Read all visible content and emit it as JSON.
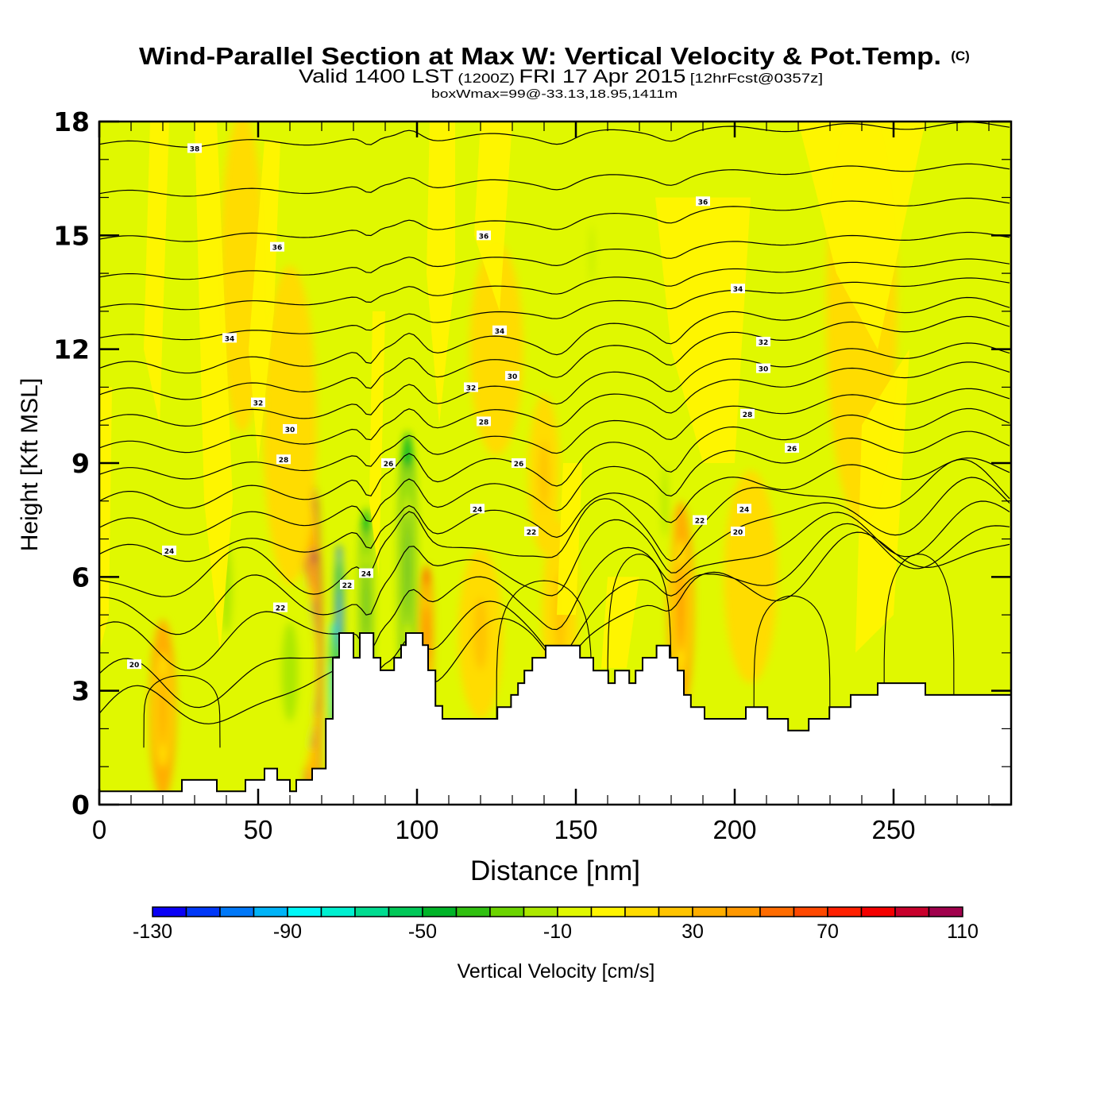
{
  "chart_data": {
    "type": "heatmap",
    "title": "Wind-Parallel Section at Max W: Vertical Velocity & Pot.Temp.",
    "title_badge": "(C)",
    "subtitle_parts": {
      "a": "Valid 1400 LST",
      "b": "(1200Z)",
      "c": "FRI 17 Apr 2015",
      "d": "[12hrFcst@0357z]"
    },
    "subtitle2": "boxWmax=99@-33.13,18.95,1411m",
    "xlabel": "Distance [nm]",
    "ylabel": "Height [Kft MSL]",
    "xlim": [
      0,
      287
    ],
    "ylim": [
      0,
      18
    ],
    "x_ticks": [
      0,
      50,
      100,
      150,
      200,
      250
    ],
    "x_tick_labels": [
      "0",
      "50",
      "100",
      "150",
      "200",
      "250"
    ],
    "x_minor_step": 10,
    "y_ticks": [
      0,
      3,
      6,
      9,
      12,
      15,
      18
    ],
    "y_tick_labels": [
      "0",
      "3",
      "6",
      "9",
      "12",
      "15",
      "18"
    ],
    "y_minor_step": 1,
    "colorbar": {
      "label": "Vertical Velocity [cm/s]",
      "levels": [
        -130,
        -120,
        -110,
        -100,
        -90,
        -80,
        -70,
        -60,
        -50,
        -40,
        -30,
        -20,
        -10,
        0,
        10,
        20,
        30,
        40,
        50,
        60,
        70,
        80,
        90,
        100,
        110
      ],
      "tick_values": [
        -130,
        -90,
        -50,
        -10,
        30,
        70,
        110
      ],
      "tick_labels": [
        "-130",
        "-90",
        "-50",
        "-10",
        "30",
        "70",
        "110"
      ],
      "colors": [
        "#0a00f5",
        "#0038f8",
        "#0078f8",
        "#00b4f8",
        "#00f8f8",
        "#00f0d0",
        "#00dc90",
        "#00c858",
        "#00b428",
        "#30c010",
        "#6cd400",
        "#ace800",
        "#e0f800",
        "#fff400",
        "#ffdc00",
        "#ffc400",
        "#ffae00",
        "#ff9800",
        "#ff6c00",
        "#ff4800",
        "#ff2000",
        "#f40000",
        "#c8002c",
        "#a0004c"
      ]
    },
    "background_level_color": "#e0f800",
    "terrain_kft": [
      [
        0,
        0.35
      ],
      [
        26,
        0.35
      ],
      [
        26,
        0.65
      ],
      [
        37,
        0.65
      ],
      [
        37,
        0.35
      ],
      [
        46,
        0.35
      ],
      [
        46,
        0.65
      ],
      [
        52,
        0.65
      ],
      [
        52,
        0.95
      ],
      [
        56,
        0.95
      ],
      [
        56,
        0.65
      ],
      [
        60,
        0.65
      ],
      [
        60,
        0.35
      ],
      [
        62,
        0.35
      ],
      [
        62,
        0.65
      ],
      [
        67,
        0.65
      ],
      [
        67,
        0.95
      ],
      [
        71.3,
        0.95
      ],
      [
        71.3,
        2.26
      ],
      [
        73.5,
        2.26
      ],
      [
        73.5,
        3.87
      ],
      [
        75.5,
        3.87
      ],
      [
        75.5,
        4.52
      ],
      [
        80,
        4.52
      ],
      [
        80,
        3.87
      ],
      [
        82,
        3.87
      ],
      [
        82,
        4.52
      ],
      [
        86.3,
        4.52
      ],
      [
        86.3,
        3.87
      ],
      [
        88.5,
        3.87
      ],
      [
        88.5,
        3.54
      ],
      [
        92.8,
        3.54
      ],
      [
        92.8,
        3.87
      ],
      [
        95,
        3.87
      ],
      [
        95,
        4.2
      ],
      [
        96.5,
        4.2
      ],
      [
        96.5,
        4.52
      ],
      [
        101.8,
        4.52
      ],
      [
        101.8,
        4.2
      ],
      [
        103.5,
        4.2
      ],
      [
        103.5,
        3.54
      ],
      [
        105.8,
        3.54
      ],
      [
        105.8,
        2.6
      ],
      [
        108,
        2.6
      ],
      [
        108,
        2.26
      ],
      [
        125.3,
        2.26
      ],
      [
        125.3,
        2.57
      ],
      [
        129.6,
        2.57
      ],
      [
        129.6,
        2.89
      ],
      [
        131.8,
        2.89
      ],
      [
        131.8,
        3.2
      ],
      [
        133.8,
        3.2
      ],
      [
        133.8,
        3.53
      ],
      [
        136.3,
        3.53
      ],
      [
        136.3,
        3.87
      ],
      [
        140.5,
        3.87
      ],
      [
        140.5,
        4.19
      ],
      [
        151.3,
        4.19
      ],
      [
        151.3,
        3.87
      ],
      [
        155.5,
        3.87
      ],
      [
        155.5,
        3.53
      ],
      [
        160.2,
        3.53
      ],
      [
        160.2,
        3.2
      ],
      [
        162.3,
        3.2
      ],
      [
        162.3,
        3.53
      ],
      [
        166.8,
        3.53
      ],
      [
        166.8,
        3.2
      ],
      [
        168.8,
        3.2
      ],
      [
        168.8,
        3.53
      ],
      [
        171,
        3.53
      ],
      [
        171,
        3.87
      ],
      [
        175.4,
        3.87
      ],
      [
        175.4,
        4.19
      ],
      [
        179.5,
        4.19
      ],
      [
        179.5,
        3.87
      ],
      [
        182,
        3.87
      ],
      [
        182,
        3.53
      ],
      [
        184,
        3.53
      ],
      [
        184,
        2.89
      ],
      [
        186.2,
        2.89
      ],
      [
        186.2,
        2.57
      ],
      [
        190.5,
        2.57
      ],
      [
        190.5,
        2.26
      ],
      [
        203.5,
        2.26
      ],
      [
        203.5,
        2.57
      ],
      [
        210.3,
        2.57
      ],
      [
        210.3,
        2.26
      ],
      [
        216.8,
        2.26
      ],
      [
        216.8,
        1.95
      ],
      [
        223.3,
        1.95
      ],
      [
        223.3,
        2.26
      ],
      [
        229.8,
        2.26
      ],
      [
        229.8,
        2.57
      ],
      [
        236.5,
        2.57
      ],
      [
        236.5,
        2.89
      ],
      [
        245,
        2.89
      ],
      [
        245,
        3.2
      ],
      [
        260,
        3.2
      ],
      [
        260,
        2.89
      ],
      [
        287,
        2.89
      ]
    ],
    "w_features": [
      {
        "x": 67,
        "y": 3.6,
        "wx": 2.2,
        "wy": 3.6,
        "value": 100
      },
      {
        "x": 67.5,
        "y": 4.5,
        "wx": 1.5,
        "wy": 1.6,
        "value": 110
      },
      {
        "x": 75.5,
        "y": 4.9,
        "wx": 1.1,
        "wy": 1.4,
        "value": -110
      },
      {
        "x": 73.5,
        "y": 3.0,
        "wx": 0.9,
        "wy": 1.3,
        "value": -90
      },
      {
        "x": 84,
        "y": 5.3,
        "wx": 1.6,
        "wy": 1.8,
        "value": -50
      },
      {
        "x": 97,
        "y": 6.2,
        "wx": 2.0,
        "wy": 2.6,
        "value": -50
      },
      {
        "x": 103,
        "y": 4.5,
        "wx": 1.5,
        "wy": 1.3,
        "value": 50
      },
      {
        "x": 60,
        "y": 3.5,
        "wx": 6.0,
        "wy": 2.2,
        "value": -20
      },
      {
        "x": 40,
        "y": 5.7,
        "wx": 4.0,
        "wy": 2.0,
        "value": -20
      },
      {
        "x": 20,
        "y": 2.5,
        "wx": 3.0,
        "wy": 1.7,
        "value": 30
      },
      {
        "x": 120,
        "y": 4.5,
        "wx": 5.0,
        "wy": 1.6,
        "value": 25
      },
      {
        "x": 140,
        "y": 8.7,
        "wx": 3.5,
        "wy": 1.5,
        "value": 25
      },
      {
        "x": 145,
        "y": 5.0,
        "wx": 4.0,
        "wy": 1.8,
        "value": 20
      },
      {
        "x": 183,
        "y": 5.2,
        "wx": 3.0,
        "wy": 2.0,
        "value": 40
      },
      {
        "x": 178,
        "y": 8.0,
        "wx": 2.0,
        "wy": 1.6,
        "value": -20
      },
      {
        "x": 125,
        "y": 12.0,
        "wx": 6.0,
        "wy": 2.0,
        "value": 10
      },
      {
        "x": 240,
        "y": 13.0,
        "wx": 8.0,
        "wy": 4.0,
        "value": 10
      },
      {
        "x": 45,
        "y": 14.0,
        "wx": 5.0,
        "wy": 3.0,
        "value": 10
      },
      {
        "x": 60,
        "y": 10.0,
        "wx": 6.0,
        "wy": 3.0,
        "value": 10
      },
      {
        "x": 205,
        "y": 6.0,
        "wx": 6.0,
        "wy": 2.0,
        "value": 10
      },
      {
        "x": 155,
        "y": 14.5,
        "wx": 1.0,
        "wy": 1.3,
        "value": -20
      }
    ],
    "theta_contours": {
      "levels_K": [
        20,
        21,
        22,
        23,
        24,
        25,
        26,
        27,
        28,
        29,
        30,
        31,
        32,
        33,
        34,
        35,
        36,
        37,
        38
      ],
      "labels": [
        {
          "text": "38",
          "x": 30,
          "y": 17.3
        },
        {
          "text": "36",
          "x": 56,
          "y": 14.7
        },
        {
          "text": "36",
          "x": 121,
          "y": 15.0
        },
        {
          "text": "36",
          "x": 190,
          "y": 15.9
        },
        {
          "text": "34",
          "x": 41,
          "y": 12.3
        },
        {
          "text": "34",
          "x": 126,
          "y": 12.5
        },
        {
          "text": "34",
          "x": 201,
          "y": 13.6
        },
        {
          "text": "32",
          "x": 209,
          "y": 12.2
        },
        {
          "text": "32",
          "x": 50,
          "y": 10.6
        },
        {
          "text": "32",
          "x": 117,
          "y": 11.0
        },
        {
          "text": "30",
          "x": 60,
          "y": 9.9
        },
        {
          "text": "30",
          "x": 130,
          "y": 11.3
        },
        {
          "text": "30",
          "x": 209,
          "y": 11.5
        },
        {
          "text": "28",
          "x": 58,
          "y": 9.1
        },
        {
          "text": "28",
          "x": 121,
          "y": 10.1
        },
        {
          "text": "28",
          "x": 204,
          "y": 10.3
        },
        {
          "text": "26",
          "x": 91,
          "y": 9.0
        },
        {
          "text": "26",
          "x": 132,
          "y": 9.0
        },
        {
          "text": "26",
          "x": 218,
          "y": 9.4
        },
        {
          "text": "24",
          "x": 22,
          "y": 6.7
        },
        {
          "text": "24",
          "x": 119,
          "y": 7.8
        },
        {
          "text": "24",
          "x": 84,
          "y": 6.1
        },
        {
          "text": "24",
          "x": 203,
          "y": 7.8
        },
        {
          "text": "22",
          "x": 57,
          "y": 5.2
        },
        {
          "text": "22",
          "x": 78,
          "y": 5.8
        },
        {
          "text": "22",
          "x": 136,
          "y": 7.2
        },
        {
          "text": "22",
          "x": 189,
          "y": 7.5
        },
        {
          "text": "20",
          "x": 11,
          "y": 3.7
        },
        {
          "text": "20",
          "x": 201,
          "y": 7.2
        }
      ]
    }
  }
}
